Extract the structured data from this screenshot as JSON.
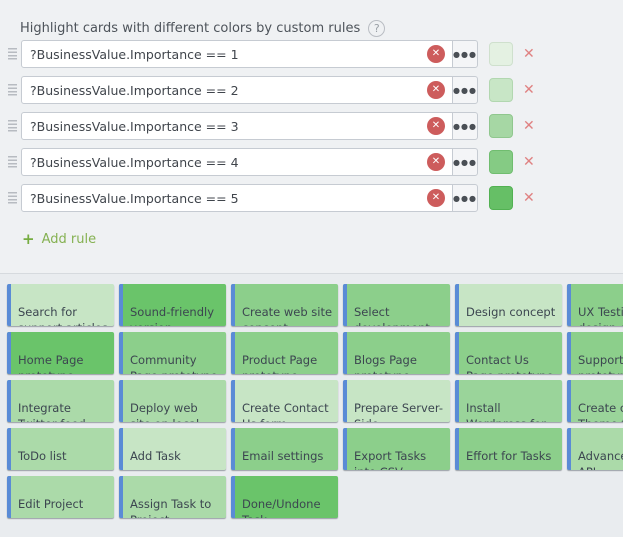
{
  "header": {
    "title": "Highlight cards with different colors by custom rules",
    "help_glyph": "?"
  },
  "rule_controls": {
    "clear_glyph": "✕",
    "more_glyph": "●●●",
    "remove_glyph": "✕"
  },
  "rules": [
    {
      "expression": "?BusinessValue.Importance == 1",
      "swatch_fill": "#e4f1e2",
      "swatch_border": "#cfe0cd"
    },
    {
      "expression": "?BusinessValue.Importance == 2",
      "swatch_fill": "#c8e6c6",
      "swatch_border": "#b2d7b0"
    },
    {
      "expression": "?BusinessValue.Importance == 3",
      "swatch_fill": "#a6d7a4",
      "swatch_border": "#90c78e"
    },
    {
      "expression": "?BusinessValue.Importance == 4",
      "swatch_fill": "#85cb84",
      "swatch_border": "#70bd6f"
    },
    {
      "expression": "?BusinessValue.Importance == 5",
      "swatch_fill": "#66bf66",
      "swatch_border": "#52b152"
    }
  ],
  "add_rule": {
    "plus": "+",
    "label": "Add rule"
  },
  "board": {
    "stripe_color": "#5a8bd6",
    "cards": [
      {
        "title": "Search for support articles",
        "color": "#c7e5c5"
      },
      {
        "title": "Sound-friendly version",
        "color": "#6ac46a"
      },
      {
        "title": "Create web site concept",
        "color": "#8ccf8b"
      },
      {
        "title": "Select development",
        "color": "#8ccf8b"
      },
      {
        "title": "Design concept",
        "color": "#c7e5c5"
      },
      {
        "title": "UX Testing design co",
        "color": "#8ccf8b"
      },
      {
        "title": "Home Page prototype",
        "color": "#6ac46a"
      },
      {
        "title": "Community Page prototype",
        "color": "#8ccf8b"
      },
      {
        "title": "Product Page prototype",
        "color": "#8ccf8b"
      },
      {
        "title": "Blogs Page prototype",
        "color": "#8ccf8b"
      },
      {
        "title": "Contact Us Page prototype",
        "color": "#8ccf8b"
      },
      {
        "title": "Support P prototype",
        "color": "#8ccf8b"
      },
      {
        "title": "Integrate Twitter feed",
        "color": "#abdaa9"
      },
      {
        "title": "Deploy web site on local server",
        "color": "#abdaa9"
      },
      {
        "title": "Create Contact Us form",
        "color": "#c7e5c5"
      },
      {
        "title": "Prepare Server-Side integration",
        "color": "#c7e5c5"
      },
      {
        "title": "Install Wordpress for blogs",
        "color": "#9ad49a"
      },
      {
        "title": "Create cus Theme fo",
        "color": "#9ad49a"
      },
      {
        "title": "ToDo list",
        "color": "#abdaa9"
      },
      {
        "title": "Add Task",
        "color": "#c7e5c5"
      },
      {
        "title": "Email settings",
        "color": "#8ccf8b"
      },
      {
        "title": "Export Tasks into CSV",
        "color": "#8ccf8b"
      },
      {
        "title": "Effort for Tasks",
        "color": "#8ccf8b"
      },
      {
        "title": "Advanced\nAPI",
        "color": "#abdaa9"
      },
      {
        "title": "Edit Project",
        "color": "#abdaa9"
      },
      {
        "title": "Assign Task to Project",
        "color": "#abdaa9"
      },
      {
        "title": "Done/Undone Task",
        "color": "#6ac46a"
      }
    ]
  }
}
